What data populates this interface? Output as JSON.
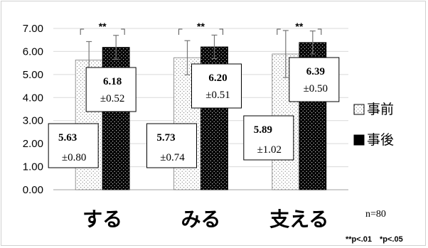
{
  "chart_data": {
    "type": "bar",
    "categories": [
      "する",
      "みる",
      "支える"
    ],
    "series": [
      {
        "name": "事前",
        "values": [
          5.63,
          5.73,
          5.89
        ],
        "sd": [
          0.8,
          0.74,
          1.02
        ],
        "mean_labels": [
          "5.63",
          "5.73",
          "5.89"
        ],
        "sd_labels": [
          "±0.80",
          "±0.74",
          "±1.02"
        ]
      },
      {
        "name": "事後",
        "values": [
          6.18,
          6.2,
          6.39
        ],
        "sd": [
          0.52,
          0.51,
          0.5
        ],
        "mean_labels": [
          "6.18",
          "6.20",
          "6.39"
        ],
        "sd_labels": [
          "±0.52",
          "±0.51",
          "±0.50"
        ]
      }
    ],
    "yticks": [
      "0.00",
      "1.00",
      "2.00",
      "3.00",
      "4.00",
      "5.00",
      "6.00",
      "7.00"
    ],
    "ylim": [
      0,
      7
    ],
    "grid": true,
    "legend_position": "right",
    "significance": [
      "**",
      "**",
      "**"
    ],
    "annotations": {
      "n": "n=80",
      "footnote": "**p<.01　*p<.05"
    },
    "colors": {
      "pre_pattern": "#ffffff",
      "post_fill": "#000000"
    }
  }
}
